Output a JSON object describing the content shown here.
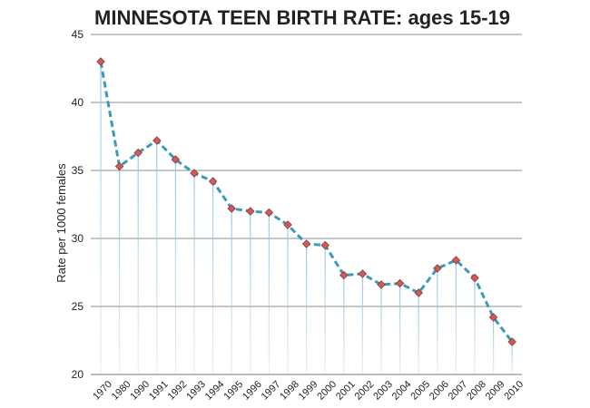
{
  "chart_data": {
    "type": "line",
    "title": "MINNESOTA TEEN BIRTH RATE: ages 15-19",
    "xlabel": "",
    "ylabel": "Rate per 1000 females",
    "ylim": [
      20,
      45
    ],
    "yticks": [
      20,
      25,
      30,
      35,
      40,
      45
    ],
    "grid": true,
    "legend": "none",
    "categories": [
      "1970",
      "1980",
      "1990",
      "1991",
      "1992",
      "1993",
      "1994",
      "1995",
      "1996",
      "1997",
      "1998",
      "1999",
      "2000",
      "2001",
      "2002",
      "2003",
      "2004",
      "2005",
      "2006",
      "2007",
      "2008",
      "2009",
      "2010"
    ],
    "series": [
      {
        "values": [
          43.0,
          35.3,
          36.3,
          37.2,
          35.8,
          34.8,
          34.2,
          32.2,
          32.0,
          31.9,
          31.0,
          29.6,
          29.5,
          27.3,
          27.4,
          26.6,
          26.7,
          26.0,
          27.8,
          28.4,
          27.1,
          24.2,
          22.4
        ]
      }
    ],
    "colors": {
      "line": "#3a9ab8",
      "marker": "#d05a5a",
      "drop_line": "#9ec8e0"
    }
  }
}
